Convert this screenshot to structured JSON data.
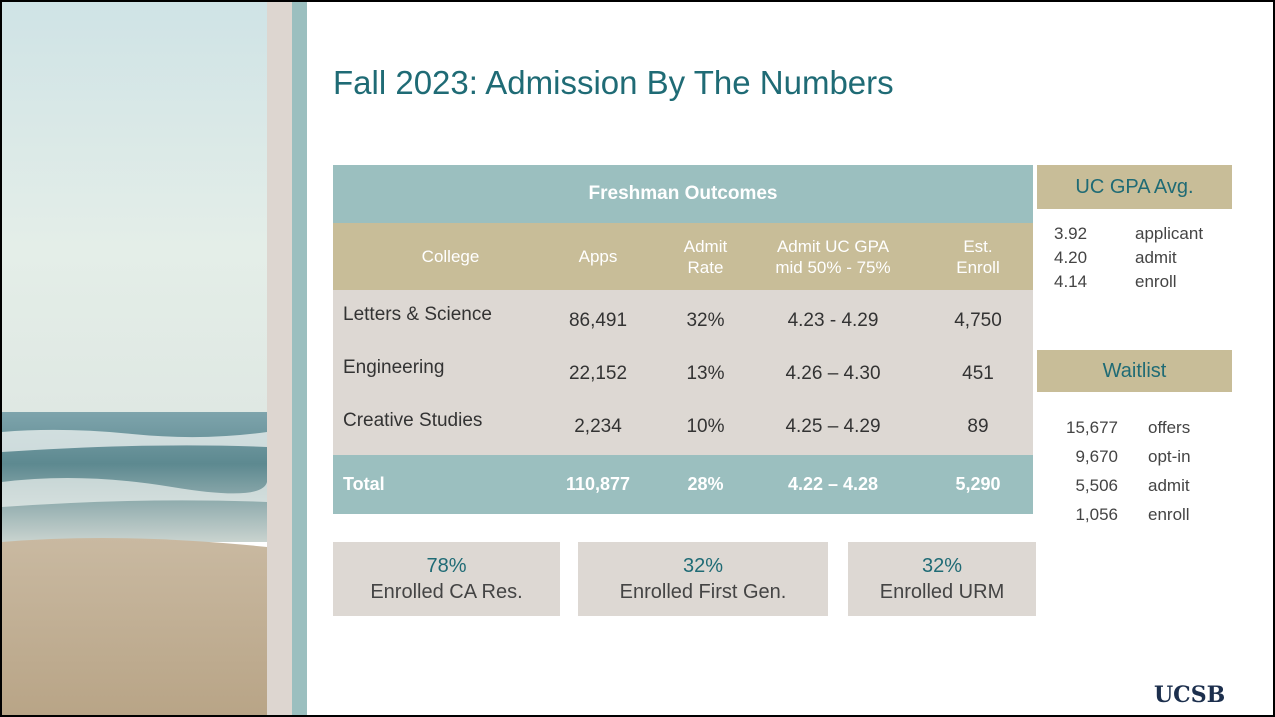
{
  "title": "Fall 2023: Admission By The Numbers",
  "table": {
    "caption": "Freshman Outcomes",
    "columns": [
      [
        "College"
      ],
      [
        "Apps"
      ],
      [
        "Admit",
        "Rate"
      ],
      [
        "Admit UC GPA",
        "mid 50% - 75%"
      ],
      [
        "Est.",
        "Enroll"
      ]
    ],
    "rows": [
      [
        "Letters & Science",
        "86,491",
        "32%",
        "4.23 - 4.29",
        "4,750"
      ],
      [
        "Engineering",
        "22,152",
        "13%",
        "4.26 – 4.30",
        "451"
      ],
      [
        "Creative Studies",
        "2,234",
        "10%",
        "4.25 – 4.29",
        "89"
      ]
    ],
    "total": [
      "Total",
      "110,877",
      "28%",
      "4.22 – 4.28",
      "5,290"
    ]
  },
  "gpa": {
    "title": "UC GPA Avg.",
    "items": [
      {
        "value": "3.92",
        "label": "applicant"
      },
      {
        "value": "4.20",
        "label": "admit"
      },
      {
        "value": "4.14",
        "label": "enroll"
      }
    ]
  },
  "waitlist": {
    "title": "Waitlist",
    "items": [
      {
        "value": "15,677",
        "label": "offers"
      },
      {
        "value": "9,670",
        "label": "opt-in"
      },
      {
        "value": "5,506",
        "label": "admit"
      },
      {
        "value": "1,056",
        "label": "enroll"
      }
    ]
  },
  "stats": [
    {
      "value": "78%",
      "label": "Enrolled CA Res."
    },
    {
      "value": "32%",
      "label": "Enrolled First Gen."
    },
    {
      "value": "32%",
      "label": "Enrolled URM"
    }
  ],
  "logo": "UCSB"
}
